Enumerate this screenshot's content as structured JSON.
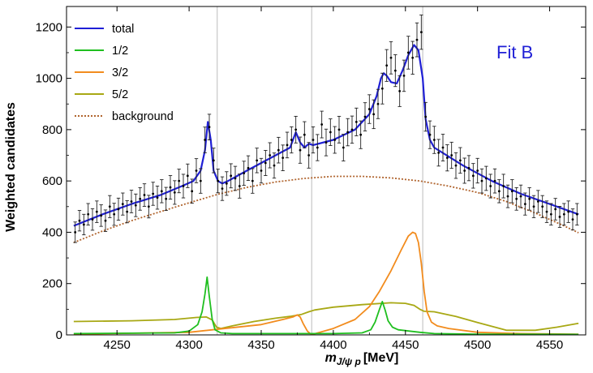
{
  "chart_data": {
    "type": "line",
    "title": "",
    "annotation": "Fit B",
    "xlabel_main": "m",
    "xlabel_sub": "J/ψ p",
    "xlabel_unit": "[MeV]",
    "ylabel": "Weighted candidates",
    "xlim": [
      4215,
      4575
    ],
    "ylim": [
      0,
      1280
    ],
    "x_ticks": [
      4250,
      4300,
      4350,
      4400,
      4450,
      4500,
      4550
    ],
    "y_ticks": [
      0,
      200,
      400,
      600,
      800,
      1000,
      1200
    ],
    "grid": false,
    "threshold_lines_x": [
      4319.5,
      4385,
      4462
    ],
    "legend_position": "top-left",
    "colors": {
      "total": "#1f1fd6",
      "j12": "#1fbf1f",
      "j32": "#f28c1e",
      "j52": "#a8a814",
      "background": "#b0642e",
      "data": "#000000",
      "fit_label": "#1f1fd6",
      "threshold": "#bbbbbb"
    },
    "series": [
      {
        "name": "total",
        "style": "solid",
        "x": [
          4220,
          4240,
          4260,
          4280,
          4295,
          4303,
          4308,
          4311,
          4313,
          4315,
          4317,
          4320,
          4323,
          4327,
          4340,
          4360,
          4370,
          4374,
          4377,
          4380,
          4383,
          4386,
          4400,
          4415,
          4425,
          4430,
          4433,
          4435,
          4437,
          4440,
          4444,
          4448,
          4452,
          4456,
          4459,
          4462,
          4464,
          4467,
          4470,
          4490,
          4510,
          4530,
          4550,
          4570
        ],
        "y": [
          425,
          470,
          510,
          545,
          580,
          600,
          640,
          720,
          830,
          760,
          640,
          600,
          590,
          600,
          640,
          700,
          730,
          790,
          750,
          730,
          745,
          740,
          760,
          800,
          860,
          930,
          1000,
          1020,
          1010,
          985,
          980,
          1030,
          1090,
          1130,
          1110,
          1000,
          840,
          760,
          730,
          660,
          600,
          550,
          510,
          470
        ]
      },
      {
        "name": "1/2",
        "style": "solid",
        "x": [
          4220,
          4290,
          4300,
          4306,
          4309,
          4311,
          4312.5,
          4314,
          4316,
          4318,
          4322,
          4330,
          4400,
          4420,
          4426,
          4429,
          4432,
          4434,
          4436,
          4438,
          4441,
          4445,
          4460,
          4470,
          4500,
          4570
        ],
        "y": [
          5,
          8,
          15,
          40,
          90,
          160,
          225,
          150,
          60,
          20,
          8,
          5,
          5,
          8,
          20,
          50,
          100,
          130,
          95,
          55,
          30,
          20,
          10,
          5,
          3,
          2
        ]
      },
      {
        "name": "3/2",
        "style": "solid",
        "x": [
          4220,
          4300,
          4350,
          4365,
          4372,
          4375,
          4377,
          4379,
          4382,
          4384,
          4386,
          4400,
          4415,
          4425,
          4432,
          4440,
          4447,
          4452,
          4455,
          4457,
          4459,
          4461,
          4463,
          4465,
          4468,
          4472,
          4480,
          4500,
          4530,
          4570
        ],
        "y": [
          3,
          10,
          40,
          60,
          70,
          78,
          70,
          45,
          15,
          5,
          3,
          25,
          60,
          110,
          170,
          250,
          330,
          385,
          400,
          395,
          360,
          280,
          170,
          90,
          50,
          35,
          25,
          10,
          5,
          3
        ]
      },
      {
        "name": "5/2",
        "style": "solid",
        "x": [
          4220,
          4260,
          4290,
          4305,
          4312,
          4316,
          4319,
          4322,
          4330,
          4345,
          4360,
          4370,
          4378,
          4383,
          4387,
          4400,
          4420,
          4440,
          4450,
          4456,
          4460,
          4463,
          4470,
          4485,
          4500,
          4520,
          4540,
          4555,
          4570
        ],
        "y": [
          52,
          55,
          60,
          68,
          70,
          58,
          30,
          25,
          35,
          52,
          65,
          72,
          80,
          90,
          97,
          108,
          118,
          125,
          123,
          115,
          100,
          92,
          90,
          72,
          48,
          18,
          18,
          30,
          45
        ]
      },
      {
        "name": "background",
        "style": "dotted",
        "x": [
          4220,
          4240,
          4260,
          4280,
          4300,
          4320,
          4340,
          4360,
          4380,
          4400,
          4420,
          4440,
          4460,
          4480,
          4500,
          4520,
          4540,
          4560,
          4570
        ],
        "y": [
          360,
          405,
          445,
          480,
          515,
          548,
          575,
          596,
          610,
          618,
          618,
          612,
          600,
          580,
          555,
          520,
          475,
          425,
          398
        ]
      }
    ],
    "data_points": {
      "name": "data",
      "x": [
        4221,
        4224,
        4227,
        4230,
        4233,
        4236,
        4239,
        4242,
        4245,
        4248,
        4251,
        4254,
        4257,
        4260,
        4263,
        4266,
        4269,
        4272,
        4275,
        4278,
        4281,
        4284,
        4287,
        4290,
        4293,
        4296,
        4299,
        4302,
        4305,
        4308,
        4311,
        4314,
        4317,
        4320,
        4323,
        4326,
        4329,
        4332,
        4335,
        4338,
        4341,
        4344,
        4347,
        4350,
        4353,
        4356,
        4359,
        4362,
        4365,
        4368,
        4371,
        4374,
        4377,
        4380,
        4383,
        4386,
        4389,
        4392,
        4395,
        4398,
        4401,
        4404,
        4407,
        4410,
        4413,
        4416,
        4419,
        4422,
        4425,
        4428,
        4431,
        4434,
        4437,
        4440,
        4443,
        4446,
        4449,
        4452,
        4455,
        4458,
        4461,
        4464,
        4467,
        4470,
        4473,
        4476,
        4479,
        4482,
        4485,
        4488,
        4491,
        4494,
        4497,
        4500,
        4503,
        4506,
        4509,
        4512,
        4515,
        4518,
        4521,
        4524,
        4527,
        4530,
        4533,
        4536,
        4539,
        4542,
        4545,
        4548,
        4551,
        4554,
        4557,
        4560,
        4563,
        4566,
        4569
      ],
      "y": [
        400,
        445,
        430,
        470,
        450,
        480,
        465,
        445,
        500,
        470,
        490,
        510,
        480,
        520,
        505,
        530,
        545,
        500,
        550,
        535,
        560,
        530,
        575,
        555,
        600,
        580,
        620,
        560,
        640,
        600,
        760,
        810,
        680,
        600,
        570,
        590,
        620,
        610,
        580,
        630,
        650,
        600,
        680,
        640,
        670,
        700,
        660,
        720,
        690,
        740,
        760,
        800,
        720,
        780,
        700,
        760,
        730,
        820,
        750,
        790,
        760,
        800,
        730,
        790,
        800,
        830,
        780,
        850,
        880,
        860,
        900,
        960,
        1050,
        1080,
        1030,
        950,
        1010,
        1100,
        1080,
        1150,
        1180,
        850,
        780,
        760,
        710,
        730,
        690,
        700,
        660,
        680,
        640,
        650,
        620,
        640,
        600,
        610,
        580,
        600,
        560,
        580,
        540,
        560,
        530,
        540,
        510,
        530,
        500,
        520,
        500,
        480,
        470,
        490,
        460,
        470,
        480,
        450,
        470
      ],
      "err": [
        40,
        40,
        40,
        42,
        42,
        42,
        42,
        42,
        43,
        43,
        43,
        43,
        43,
        44,
        44,
        44,
        44,
        44,
        45,
        45,
        45,
        45,
        46,
        46,
        46,
        46,
        46,
        47,
        47,
        48,
        50,
        50,
        48,
        46,
        46,
        46,
        47,
        47,
        47,
        47,
        48,
        48,
        48,
        48,
        49,
        49,
        49,
        50,
        50,
        50,
        51,
        52,
        51,
        51,
        50,
        51,
        51,
        52,
        52,
        52,
        52,
        52,
        52,
        53,
        53,
        54,
        54,
        55,
        56,
        56,
        57,
        60,
        62,
        63,
        62,
        60,
        61,
        64,
        64,
        66,
        67,
        56,
        54,
        53,
        52,
        52,
        51,
        51,
        50,
        50,
        49,
        49,
        48,
        48,
        47,
        47,
        46,
        47,
        45,
        46,
        44,
        45,
        44,
        44,
        43,
        44,
        43,
        43,
        43,
        42,
        42,
        42,
        41,
        42,
        42,
        41,
        42
      ]
    }
  },
  "legend": [
    {
      "label": "total",
      "key": "total"
    },
    {
      "label": "1/2",
      "key": "j12"
    },
    {
      "label": "3/2",
      "key": "j32"
    },
    {
      "label": "5/2",
      "key": "j52"
    },
    {
      "label": "background",
      "key": "background"
    }
  ]
}
